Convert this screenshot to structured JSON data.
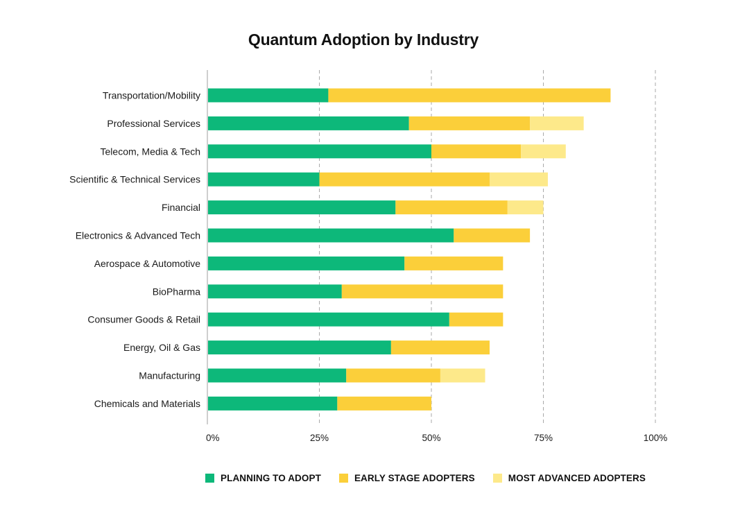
{
  "chart_data": {
    "type": "bar",
    "orientation": "horizontal",
    "stacked": true,
    "title": "Quantum Adoption by Industry",
    "xlabel": "",
    "ylabel": "",
    "xlim": [
      0,
      100
    ],
    "xticks": [
      0,
      25,
      50,
      75,
      100
    ],
    "xtick_labels": [
      "0%",
      "25%",
      "50%",
      "75%",
      "100%"
    ],
    "grid": "vertical dashed",
    "legend_position": "bottom",
    "categories": [
      "Transportation/Mobility",
      "Professional Services",
      "Telecom, Media & Tech",
      "Scientific & Technical Services",
      "Financial",
      "Electronics & Advanced Tech",
      "Aerospace & Automotive",
      "BioPharma",
      "Consumer Goods & Retail",
      "Energy, Oil & Gas",
      "Manufacturing",
      "Chemicals and Materials"
    ],
    "series": [
      {
        "name": "PLANNING TO ADOPT",
        "color": "#0db87a",
        "values": [
          27,
          45,
          50,
          25,
          42,
          55,
          44,
          30,
          54,
          41,
          31,
          29
        ]
      },
      {
        "name": "EARLY STAGE ADOPTERS",
        "color": "#fbcf3a",
        "values": [
          63,
          27,
          20,
          38,
          25,
          17,
          22,
          36,
          12,
          22,
          21,
          21
        ]
      },
      {
        "name": "MOST ADVANCED ADOPTERS",
        "color": "#fde98a",
        "values": [
          0,
          12,
          10,
          13,
          8,
          0,
          0,
          0,
          0,
          0,
          10,
          0
        ]
      }
    ]
  }
}
